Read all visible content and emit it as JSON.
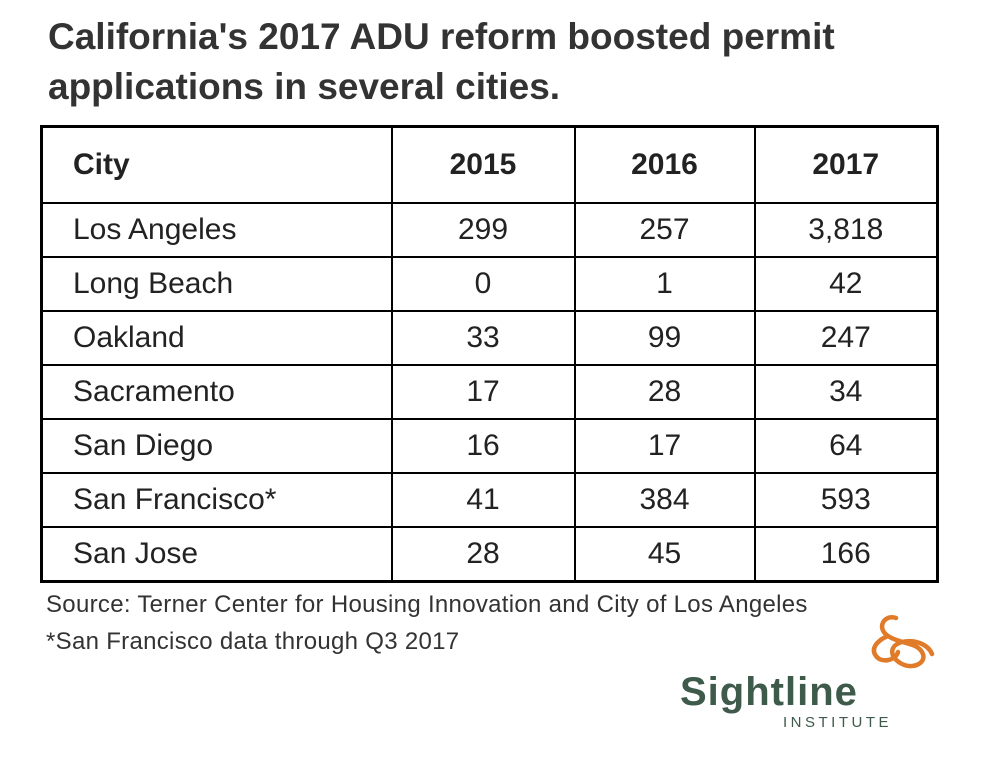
{
  "title": "California's 2017 ADU reform boosted permit applications in several cities.",
  "chart_data": {
    "type": "table",
    "title": "California's 2017 ADU reform boosted permit applications in several cities.",
    "columns": [
      "City",
      "2015",
      "2016",
      "2017"
    ],
    "rows": [
      {
        "city": "Los Angeles",
        "values": [
          "299",
          "257",
          "3,818"
        ]
      },
      {
        "city": "Long Beach",
        "values": [
          "0",
          "1",
          "42"
        ]
      },
      {
        "city": "Oakland",
        "values": [
          "33",
          "99",
          "247"
        ]
      },
      {
        "city": "Sacramento",
        "values": [
          "17",
          "28",
          "34"
        ]
      },
      {
        "city": "San Diego",
        "values": [
          "16",
          "17",
          "64"
        ]
      },
      {
        "city": "San Francisco*",
        "values": [
          "41",
          "384",
          "593"
        ]
      },
      {
        "city": "San Jose",
        "values": [
          "28",
          "45",
          "166"
        ]
      }
    ]
  },
  "source": "Source: Terner Center for Housing Innovation and City of Los Angeles",
  "footnote": "*San Francisco data through Q3 2017",
  "logo": {
    "name": "Sightline",
    "subtitle": "INSTITUTE",
    "icon": "sightline-loop-icon",
    "name_color": "#3d5a4a",
    "icon_color": "#e07b2a"
  }
}
